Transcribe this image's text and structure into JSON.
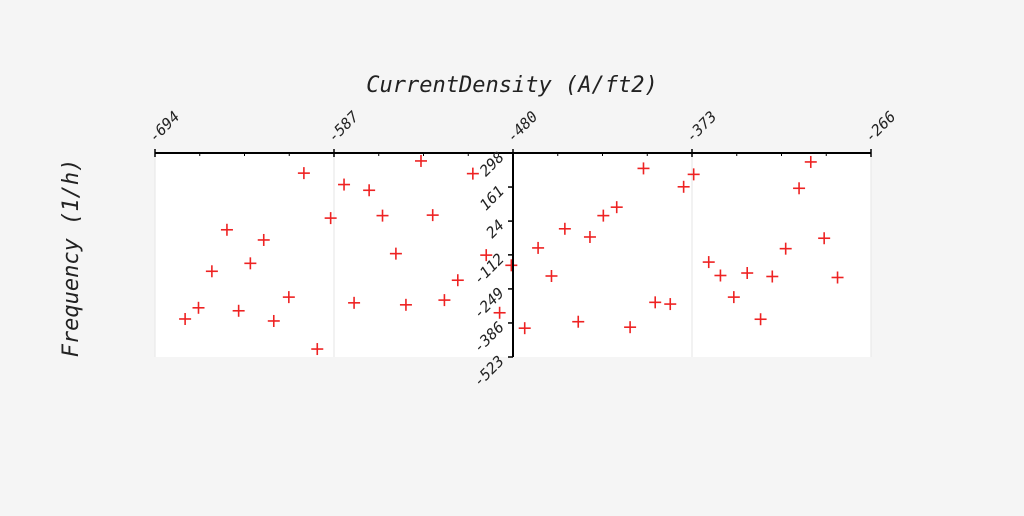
{
  "chart_data": {
    "type": "scatter",
    "xlabel": "CurrentDensity (A/ft2)",
    "ylabel": "Frequency (1/h)",
    "xlim": [
      -694,
      -266
    ],
    "ylim": [
      -523,
      298
    ],
    "x_ticks": [
      "-694",
      "-587",
      "-480",
      "-373",
      "-266"
    ],
    "y_ticks": [
      "298",
      "161",
      "24",
      "-112",
      "-249",
      "-386",
      "-523"
    ],
    "x_tick_positions": [
      "top"
    ],
    "grid": true,
    "marker": "plus",
    "marker_color": "#ee2222",
    "series": [
      {
        "points": [
          {
            "x": -676,
            "y": -370
          },
          {
            "x": -668,
            "y": -325
          },
          {
            "x": -660,
            "y": -178
          },
          {
            "x": -651,
            "y": -11
          },
          {
            "x": -644,
            "y": -337
          },
          {
            "x": -637,
            "y": -146
          },
          {
            "x": -629,
            "y": -52
          },
          {
            "x": -623,
            "y": -378
          },
          {
            "x": -614,
            "y": -282
          },
          {
            "x": -605,
            "y": 217
          },
          {
            "x": -597,
            "y": -491
          },
          {
            "x": -589,
            "y": 36
          },
          {
            "x": -581,
            "y": 171
          },
          {
            "x": -575,
            "y": -305
          },
          {
            "x": -566,
            "y": 148
          },
          {
            "x": -558,
            "y": 46
          },
          {
            "x": -550,
            "y": -107
          },
          {
            "x": -544,
            "y": -313
          },
          {
            "x": -535,
            "y": 266
          },
          {
            "x": -528,
            "y": 48
          },
          {
            "x": -521,
            "y": -294
          },
          {
            "x": -513,
            "y": -214
          },
          {
            "x": -504,
            "y": 215
          },
          {
            "x": -496,
            "y": -113
          },
          {
            "x": -488,
            "y": -345
          },
          {
            "x": -481,
            "y": -154
          },
          {
            "x": -473,
            "y": -407
          },
          {
            "x": -465,
            "y": -84
          },
          {
            "x": -457,
            "y": -197
          },
          {
            "x": -449,
            "y": -7
          },
          {
            "x": -441,
            "y": -381
          },
          {
            "x": -434,
            "y": -40
          },
          {
            "x": -426,
            "y": 46
          },
          {
            "x": -418,
            "y": 80
          },
          {
            "x": -410,
            "y": -403
          },
          {
            "x": -402,
            "y": 236
          },
          {
            "x": -395,
            "y": -303
          },
          {
            "x": -386,
            "y": -310
          },
          {
            "x": -378,
            "y": 162
          },
          {
            "x": -372,
            "y": 212
          },
          {
            "x": -363,
            "y": -141
          },
          {
            "x": -356,
            "y": -195
          },
          {
            "x": -348,
            "y": -282
          },
          {
            "x": -340,
            "y": -185
          },
          {
            "x": -332,
            "y": -371
          },
          {
            "x": -325,
            "y": -199
          },
          {
            "x": -317,
            "y": -87
          },
          {
            "x": -309,
            "y": 156
          },
          {
            "x": -302,
            "y": 262
          },
          {
            "x": -294,
            "y": -45
          },
          {
            "x": -286,
            "y": -203
          }
        ]
      }
    ]
  }
}
